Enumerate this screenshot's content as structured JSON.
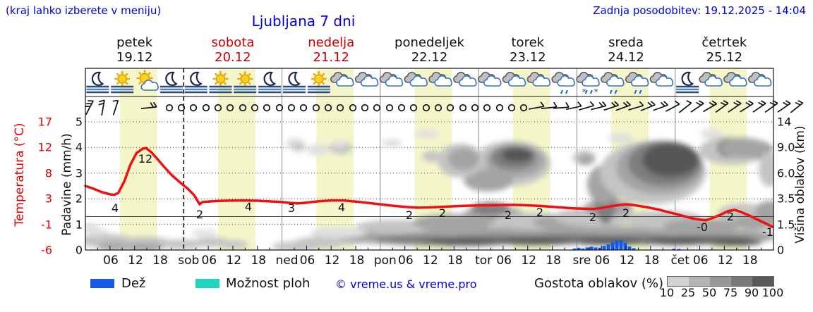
{
  "header": {
    "location_hint": "(kraj lahko izberete v meniju)",
    "title": "Ljubljana 7 dni",
    "last_update": "Zadnja posodobitev: 19.12.2025 - 14:04"
  },
  "colors": {
    "accent_blue": "#0000dd",
    "temp_red": "#dd0000",
    "line_red": "#ee1111",
    "daylight_band": "#f4f6c9",
    "rain_blue": "#1659e8",
    "showers_cyan": "#1fd5c0",
    "grid_gray": "#666666"
  },
  "days": [
    {
      "name": "petek",
      "date": "19.12",
      "color": "#111111"
    },
    {
      "name": "sobota",
      "date": "20.12",
      "color": "#cc0000"
    },
    {
      "name": "nedelja",
      "date": "21.12",
      "color": "#cc0000"
    },
    {
      "name": "ponedeljek",
      "date": "22.12",
      "color": "#111111"
    },
    {
      "name": "torek",
      "date": "23.12",
      "color": "#111111"
    },
    {
      "name": "sreda",
      "date": "24.12",
      "color": "#111111"
    },
    {
      "name": "četrtek",
      "date": "25.12",
      "color": "#111111"
    }
  ],
  "axes": {
    "temperature": {
      "label": "Temperatura (°C)",
      "ticks": [
        "17",
        "12",
        "8",
        "3",
        "-1",
        "-6"
      ]
    },
    "precipitation": {
      "label": "Padavine (mm/h)",
      "ticks": [
        "5",
        "4",
        "3",
        "2",
        "1",
        "0"
      ]
    },
    "cloud_height": {
      "label": "Višina oblakov (km)",
      "ticks": [
        "14",
        "9.0",
        "6.0",
        "3.5",
        "1.5",
        "0"
      ]
    },
    "time": {
      "hour_labels": [
        "06",
        "12",
        "18"
      ],
      "day_abbrevs": [
        "sob",
        "ned",
        "pon",
        "tor",
        "sre",
        "čet"
      ]
    }
  },
  "legend": {
    "rain_label": "Dež",
    "showers_label": "Možnost ploh",
    "copyright": "© vreme.us & vreme.pro",
    "cloud_density_label": "Gostota oblakov (%)",
    "scale_values": [
      "10",
      "25",
      "50",
      "75",
      "90",
      "100"
    ],
    "scale_colors": [
      "#d2d2d2",
      "#b4b4b4",
      "#989898",
      "#787878",
      "#595959"
    ]
  },
  "chart_data": {
    "type": "line",
    "title": "Ljubljana 7 dni",
    "x_unit": "hours from 19.12 00:00",
    "x_range": [
      0,
      168
    ],
    "temp_axis": {
      "min": -6,
      "max": 17
    },
    "precip_axis": {
      "min": 0,
      "max": 5
    },
    "dashed_time_h": 24.0,
    "freezing_line_t": 0,
    "daylight_band_h": [
      8.4,
      17.5
    ],
    "series": [
      {
        "name": "Temperatura",
        "unit": "°C",
        "color": "#ee1111",
        "points": [
          [
            0,
            5.5
          ],
          [
            2,
            5.0
          ],
          [
            4,
            4.4
          ],
          [
            6,
            4.0
          ],
          [
            7,
            3.9
          ],
          [
            8,
            4.2
          ],
          [
            9.5,
            6.3
          ],
          [
            11,
            9.3
          ],
          [
            12.5,
            11.4
          ],
          [
            14,
            12.2
          ],
          [
            14.8,
            12.3
          ],
          [
            16,
            11.6
          ],
          [
            17.5,
            10.4
          ],
          [
            19,
            9.1
          ],
          [
            21,
            7.5
          ],
          [
            23,
            6.2
          ],
          [
            25,
            5.0
          ],
          [
            26.5,
            3.9
          ],
          [
            27.9,
            2.2
          ],
          [
            28.6,
            2.6
          ],
          [
            30,
            2.7
          ],
          [
            32,
            2.8
          ],
          [
            34,
            2.85
          ],
          [
            38,
            2.9
          ],
          [
            42,
            2.85
          ],
          [
            46,
            2.7
          ],
          [
            48,
            2.6
          ],
          [
            50,
            2.45
          ],
          [
            52,
            2.35
          ],
          [
            54,
            2.5
          ],
          [
            57,
            2.75
          ],
          [
            60,
            2.9
          ],
          [
            63,
            2.9
          ],
          [
            66,
            2.7
          ],
          [
            69,
            2.45
          ],
          [
            72,
            2.2
          ],
          [
            75,
            1.95
          ],
          [
            78,
            1.75
          ],
          [
            81,
            1.6
          ],
          [
            84,
            1.65
          ],
          [
            87,
            1.75
          ],
          [
            90,
            1.85
          ],
          [
            93,
            1.95
          ],
          [
            96,
            2.0
          ],
          [
            100,
            2.05
          ],
          [
            104,
            2.1
          ],
          [
            107,
            2.05
          ],
          [
            110,
            1.95
          ],
          [
            113,
            1.8
          ],
          [
            116,
            1.65
          ],
          [
            119,
            1.5
          ],
          [
            122,
            1.4
          ],
          [
            124,
            1.35
          ],
          [
            126,
            1.55
          ],
          [
            128,
            1.8
          ],
          [
            130,
            2.05
          ],
          [
            132,
            2.2
          ],
          [
            134,
            2.05
          ],
          [
            137,
            1.7
          ],
          [
            140,
            1.25
          ],
          [
            142,
            0.85
          ],
          [
            144,
            0.5
          ],
          [
            146,
            0.1
          ],
          [
            148,
            -0.3
          ],
          [
            150,
            -0.55
          ],
          [
            151.5,
            -0.65
          ],
          [
            153,
            -0.3
          ],
          [
            155,
            0.3
          ],
          [
            157,
            1.0
          ],
          [
            158.5,
            1.2
          ],
          [
            160,
            0.85
          ],
          [
            162,
            0.2
          ],
          [
            164,
            -0.5
          ],
          [
            166,
            -1.2
          ],
          [
            167.8,
            -1.85
          ]
        ]
      }
    ],
    "temp_point_labels": [
      {
        "text": "4",
        "x": 163,
        "y": 301
      },
      {
        "text": "12",
        "x": 206,
        "y": 231
      },
      {
        "text": "2",
        "x": 283,
        "y": 310
      },
      {
        "text": "4",
        "x": 352,
        "y": 299
      },
      {
        "text": "3",
        "x": 413,
        "y": 301
      },
      {
        "text": "4",
        "x": 484,
        "y": 300
      },
      {
        "text": "2",
        "x": 580,
        "y": 311
      },
      {
        "text": "2",
        "x": 627,
        "y": 308
      },
      {
        "text": "2",
        "x": 720,
        "y": 311
      },
      {
        "text": "2",
        "x": 765,
        "y": 307
      },
      {
        "text": "2",
        "x": 840,
        "y": 314
      },
      {
        "text": "2",
        "x": 887,
        "y": 308
      },
      {
        "text": "-0",
        "x": 995,
        "y": 328
      },
      {
        "text": "2",
        "x": 1035,
        "y": 313
      },
      {
        "text": "-1",
        "x": 1088,
        "y": 335
      }
    ],
    "precipitation_bars": [
      [
        814,
        0.06
      ],
      [
        820,
        0.09
      ],
      [
        826,
        0.06
      ],
      [
        832,
        0.1
      ],
      [
        838,
        0.13
      ],
      [
        844,
        0.1
      ],
      [
        850,
        0.09
      ],
      [
        856,
        0.16
      ],
      [
        862,
        0.22
      ],
      [
        868,
        0.3
      ],
      [
        874,
        0.38
      ],
      [
        880,
        0.38
      ],
      [
        886,
        0.28
      ],
      [
        892,
        0.14
      ],
      [
        898,
        0.07
      ],
      [
        955,
        0.05
      ],
      [
        962,
        0.04
      ]
    ],
    "cloud_levels_pct": [
      25,
      50,
      75,
      90,
      100
    ],
    "cloud_level_colors": [
      "#e0e0e0",
      "#c4c4c4",
      "#a4a4a4",
      "#7e7e7e",
      "#565656"
    ],
    "clouds": [
      [
        150,
        342,
        38,
        10,
        2
      ],
      [
        205,
        345,
        40,
        9,
        2
      ],
      [
        160,
        350,
        22,
        6,
        3
      ],
      [
        205,
        351,
        28,
        6,
        3
      ],
      [
        258,
        347,
        30,
        7,
        2
      ],
      [
        300,
        344,
        26,
        7,
        2
      ],
      [
        330,
        347,
        22,
        6,
        2
      ],
      [
        138,
        330,
        16,
        5,
        1
      ],
      [
        290,
        331,
        18,
        5,
        1
      ],
      [
        128,
        324,
        14,
        7,
        1
      ],
      [
        418,
        204,
        14,
        8,
        1
      ],
      [
        423,
        209,
        9,
        6,
        2
      ],
      [
        450,
        213,
        16,
        8,
        1
      ],
      [
        483,
        210,
        16,
        9,
        2
      ],
      [
        480,
        204,
        10,
        6,
        1
      ],
      [
        555,
        203,
        14,
        6,
        1
      ],
      [
        420,
        350,
        35,
        7,
        2
      ],
      [
        455,
        344,
        38,
        8,
        2
      ],
      [
        490,
        338,
        45,
        9,
        2
      ],
      [
        540,
        336,
        60,
        10,
        3
      ],
      [
        610,
        334,
        70,
        10,
        3
      ],
      [
        690,
        332,
        80,
        11,
        3
      ],
      [
        780,
        331,
        85,
        11,
        3
      ],
      [
        870,
        332,
        80,
        11,
        3
      ],
      [
        960,
        334,
        80,
        11,
        3
      ],
      [
        1040,
        336,
        60,
        10,
        3
      ],
      [
        600,
        341,
        70,
        7,
        4
      ],
      [
        700,
        340,
        80,
        7,
        4
      ],
      [
        800,
        339,
        80,
        7,
        4
      ],
      [
        900,
        340,
        80,
        7,
        4
      ],
      [
        1000,
        340,
        70,
        7,
        4
      ],
      [
        660,
        344,
        60,
        5,
        5
      ],
      [
        760,
        343,
        60,
        5,
        5
      ],
      [
        860,
        343,
        50,
        5,
        5
      ],
      [
        960,
        343,
        50,
        5,
        5
      ],
      [
        1040,
        344,
        40,
        5,
        5
      ],
      [
        480,
        330,
        40,
        8,
        1
      ],
      [
        560,
        322,
        55,
        10,
        2
      ],
      [
        640,
        316,
        55,
        12,
        3
      ],
      [
        700,
        306,
        45,
        13,
        3
      ],
      [
        695,
        296,
        28,
        9,
        4
      ],
      [
        755,
        314,
        55,
        12,
        2
      ],
      [
        800,
        316,
        45,
        10,
        3
      ],
      [
        845,
        308,
        60,
        14,
        2
      ],
      [
        862,
        295,
        35,
        12,
        3
      ],
      [
        858,
        278,
        16,
        40,
        4
      ],
      [
        856,
        262,
        24,
        28,
        3
      ],
      [
        940,
        312,
        55,
        13,
        2
      ],
      [
        995,
        320,
        55,
        10,
        3
      ],
      [
        1055,
        303,
        38,
        14,
        2
      ],
      [
        1072,
        316,
        35,
        10,
        3
      ],
      [
        1090,
        300,
        20,
        15,
        3
      ],
      [
        725,
        232,
        55,
        32,
        2
      ],
      [
        730,
        228,
        42,
        24,
        3
      ],
      [
        728,
        224,
        32,
        17,
        4
      ],
      [
        733,
        220,
        22,
        10,
        5
      ],
      [
        692,
        256,
        35,
        16,
        3
      ],
      [
        925,
        245,
        75,
        45,
        2
      ],
      [
        935,
        238,
        62,
        38,
        3
      ],
      [
        942,
        232,
        52,
        32,
        4
      ],
      [
        950,
        227,
        40,
        24,
        5
      ],
      [
        828,
        224,
        16,
        11,
        2
      ],
      [
        831,
        227,
        11,
        7,
        3
      ],
      [
        880,
        196,
        18,
        7,
        1
      ],
      [
        652,
        228,
        32,
        24,
        2
      ],
      [
        657,
        226,
        22,
        16,
        3
      ],
      [
        605,
        190,
        18,
        6,
        1
      ],
      [
        612,
        222,
        14,
        8,
        2
      ],
      [
        1038,
        214,
        48,
        20,
        2
      ],
      [
        1032,
        210,
        16,
        13,
        4
      ],
      [
        1074,
        212,
        20,
        12,
        4
      ],
      [
        1055,
        210,
        35,
        14,
        3
      ],
      [
        1008,
        190,
        16,
        7,
        1
      ],
      [
        1090,
        240,
        15,
        25,
        2
      ]
    ],
    "weather_icons": [
      "moon-fog",
      "sun-fog",
      "sun-cloud",
      "moon-fog",
      "moon-fog",
      "sun-fog",
      "sun-fog",
      "moon-fog",
      "moon-fog",
      "sun-fog",
      "cloud",
      "cloud",
      "cloud",
      "cloud",
      "cloud",
      "cloud",
      "cloud",
      "cloud",
      "cloud",
      "cloud-rain",
      "cloud-sleet",
      "cloud-rain",
      "cloud-rain",
      "cloud",
      "moon-fog",
      "cloud",
      "cloud",
      "cloud"
    ],
    "wind": {
      "calm_x": [
        240,
        257,
        274,
        292,
        309,
        326,
        344,
        361,
        378,
        396,
        413,
        430,
        448,
        465,
        482,
        500,
        517,
        534,
        552,
        569,
        586,
        604,
        621,
        638,
        656,
        673,
        690,
        708,
        725,
        742
      ],
      "barbs": [
        {
          "x": 127,
          "t": 3,
          "r": -62
        },
        {
          "x": 146,
          "t": 2,
          "r": -80
        },
        {
          "x": 164,
          "t": 1,
          "r": -72
        },
        {
          "x": 211,
          "t": 2,
          "r": -6
        },
        {
          "x": 760,
          "t": 1,
          "r": -10
        },
        {
          "x": 778,
          "t": 1,
          "r": -6
        },
        {
          "x": 795,
          "t": 1,
          "r": -4
        },
        {
          "x": 813,
          "t": 1,
          "r": -12
        },
        {
          "x": 831,
          "t": 1,
          "r": -16
        },
        {
          "x": 848,
          "t": 2,
          "r": -14
        },
        {
          "x": 866,
          "t": 2,
          "r": -18
        },
        {
          "x": 883,
          "t": 2,
          "r": -20
        },
        {
          "x": 901,
          "t": 1,
          "r": -16
        },
        {
          "x": 918,
          "t": 2,
          "r": -22
        },
        {
          "x": 936,
          "t": 2,
          "r": -20
        },
        {
          "x": 953,
          "t": 1,
          "r": -28
        },
        {
          "x": 971,
          "t": 1,
          "r": -38
        },
        {
          "x": 988,
          "t": 2,
          "r": -34
        },
        {
          "x": 1006,
          "t": 2,
          "r": -30
        },
        {
          "x": 1023,
          "t": 2,
          "r": -36
        },
        {
          "x": 1041,
          "t": 2,
          "r": -34
        },
        {
          "x": 1058,
          "t": 2,
          "r": -32
        },
        {
          "x": 1076,
          "t": 2,
          "r": -34
        },
        {
          "x": 1093,
          "t": 2,
          "r": -36
        },
        {
          "x": 1111,
          "t": 2,
          "r": -34
        },
        {
          "x": 1129,
          "t": 2,
          "r": -38
        }
      ]
    }
  }
}
